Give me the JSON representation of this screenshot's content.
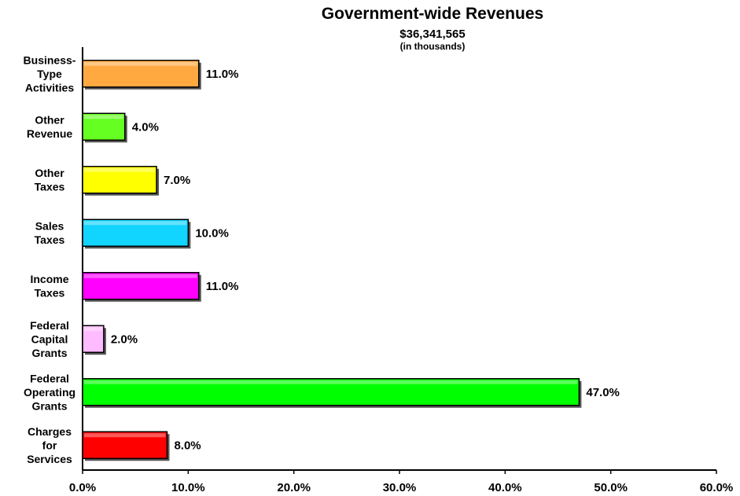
{
  "chart_data": {
    "type": "bar",
    "orientation": "horizontal",
    "title": "Government-wide Revenues",
    "subtitle": "$36,341,565",
    "subtitle_note": "(in thousands)",
    "categories": [
      [
        "Business-",
        "Type",
        "Activities"
      ],
      [
        "Other",
        "Revenue"
      ],
      [
        "Other",
        "Taxes"
      ],
      [
        "Sales",
        "Taxes"
      ],
      [
        "Income",
        "Taxes"
      ],
      [
        "Federal",
        "Capital",
        "Grants"
      ],
      [
        "Federal",
        "Operating",
        "Grants"
      ],
      [
        "Charges",
        "for",
        "Services"
      ]
    ],
    "values": [
      11.0,
      4.0,
      7.0,
      10.0,
      11.0,
      2.0,
      47.0,
      8.0
    ],
    "data_labels": [
      "11.0%",
      "4.0%",
      "7.0%",
      "10.0%",
      "11.0%",
      "2.0%",
      "47.0%",
      "8.0%"
    ],
    "colors": [
      "#FFA940",
      "#66FF22",
      "#FFFF00",
      "#11D4FF",
      "#FF00FF",
      "#FFBBFF",
      "#00FF00",
      "#FF0000"
    ],
    "xlim": [
      0,
      60
    ],
    "xticks": [
      0,
      10,
      20,
      30,
      40,
      50,
      60
    ],
    "xtick_labels": [
      "0.0%",
      "10.0%",
      "20.0%",
      "30.0%",
      "40.0%",
      "50.0%",
      "60.0%"
    ],
    "xlabel": "",
    "ylabel": "",
    "grid": false,
    "legend": "none"
  }
}
